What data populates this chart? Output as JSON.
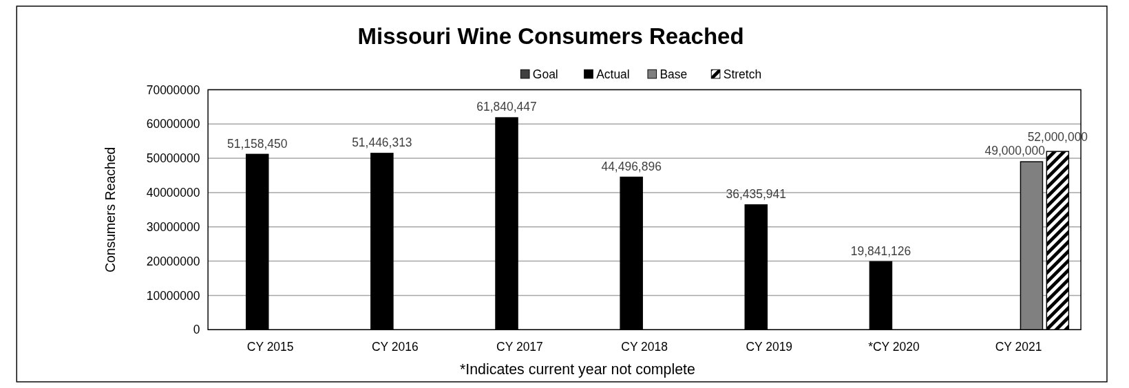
{
  "chart_data": {
    "type": "bar",
    "title": "Missouri Wine Consumers Reached",
    "ylabel": "Consumers Reached",
    "xlabel": "*Indicates current year not complete",
    "categories": [
      "CY 2015",
      "CY 2016",
      "CY 2017",
      "CY 2018",
      "CY 2019",
      "*CY 2020",
      "CY 2021"
    ],
    "series": [
      {
        "name": "Goal",
        "color": "#404040",
        "values": [
          null,
          null,
          null,
          null,
          null,
          null,
          null
        ]
      },
      {
        "name": "Actual",
        "color": "#000000",
        "values": [
          51158450,
          51446313,
          61840447,
          44496896,
          36435941,
          19841126,
          null
        ],
        "value_labels": [
          "51,158,450",
          "51,446,313",
          "61,840,447",
          "44,496,896",
          "36,435,941",
          "19,841,126",
          null
        ]
      },
      {
        "name": "Base",
        "color": "#808080",
        "values": [
          null,
          null,
          null,
          null,
          null,
          null,
          49000000
        ],
        "value_labels": [
          null,
          null,
          null,
          null,
          null,
          null,
          "49,000,000"
        ]
      },
      {
        "name": "Stretch",
        "color": "#000000",
        "values": [
          null,
          null,
          null,
          null,
          null,
          null,
          52000000
        ],
        "value_labels": [
          null,
          null,
          null,
          null,
          null,
          null,
          "52,000,000"
        ]
      }
    ],
    "ylim": [
      0,
      70000000
    ],
    "yticks": [
      0,
      10000000,
      20000000,
      30000000,
      40000000,
      50000000,
      60000000,
      70000000
    ],
    "grid": "y",
    "legend": "top"
  }
}
